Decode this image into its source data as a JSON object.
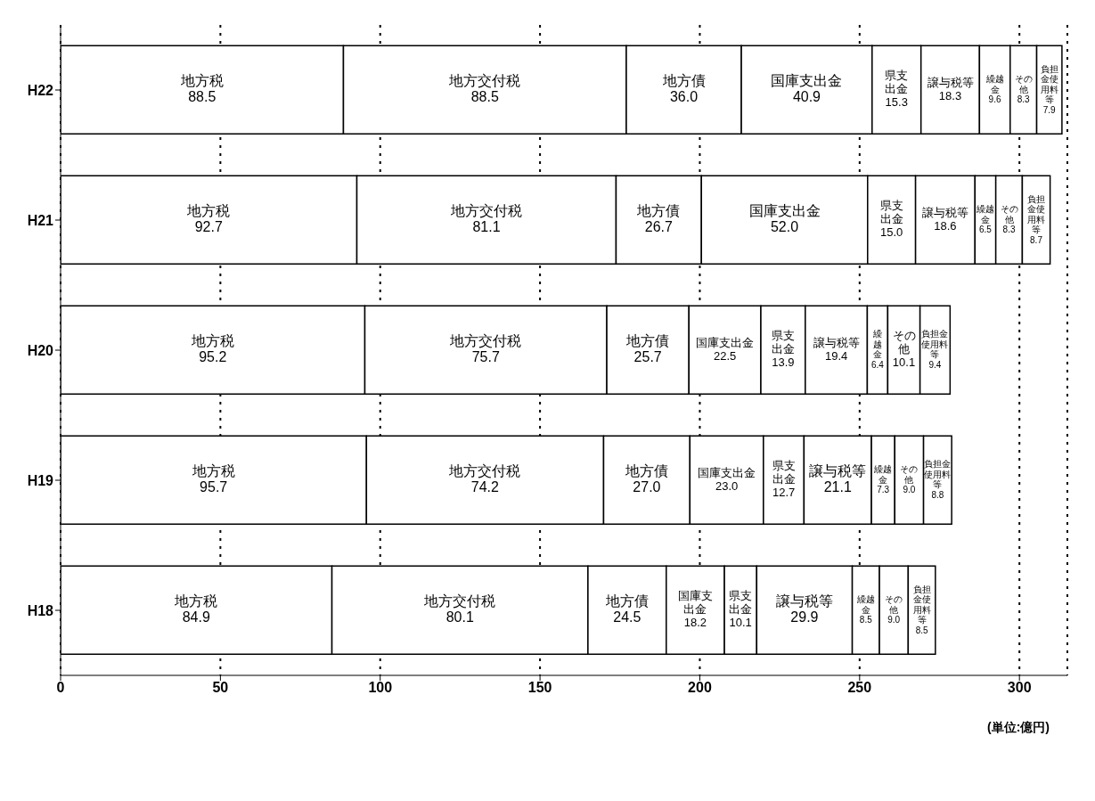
{
  "chart_data": {
    "type": "bar",
    "orientation": "horizontal",
    "stacked": true,
    "grid": "x",
    "line_style": "dotted",
    "legend": false,
    "categories": [
      "H22",
      "H21",
      "H20",
      "H19",
      "H18"
    ],
    "xlim": [
      0,
      315
    ],
    "xticks": [
      0,
      50,
      100,
      150,
      200,
      250,
      300
    ],
    "series": [
      {
        "name": "地方税",
        "color": "#ffffff",
        "values": [
          88.5,
          92.7,
          95.2,
          95.7,
          84.9
        ],
        "value_labels": [
          "88.5",
          "92.7",
          "95.2",
          "95.7",
          "84.9"
        ]
      },
      {
        "name": "地方交付税",
        "color": "#ffffff",
        "values": [
          88.5,
          81.1,
          75.7,
          74.2,
          80.1
        ],
        "value_labels": [
          "88.5",
          "81.1",
          "75.7",
          "74.2",
          "80.1"
        ]
      },
      {
        "name": "地方債",
        "color": "#ffffff",
        "values": [
          36.0,
          26.7,
          25.7,
          27.0,
          24.5
        ],
        "value_labels": [
          "36.0",
          "26.7",
          "25.7",
          "27.0",
          "24.5"
        ]
      },
      {
        "name": "国庫支出金",
        "color": "#ffffff",
        "values": [
          40.9,
          52.0,
          22.5,
          23.0,
          18.2
        ],
        "value_labels": [
          "40.9",
          "52.0",
          "22.5",
          "23.0",
          "18.2"
        ]
      },
      {
        "name": "県支出金",
        "color": "#ffffff",
        "values": [
          15.3,
          15.0,
          13.9,
          12.7,
          10.1
        ],
        "value_labels": [
          "15.3",
          "15.0",
          "13.9",
          "12.7",
          "10.1"
        ]
      },
      {
        "name": "譲与税等",
        "color": "#ffffff",
        "values": [
          18.3,
          18.6,
          19.4,
          21.1,
          29.9
        ],
        "value_labels": [
          "18.3",
          "18.6",
          "19.4",
          "21.1",
          "29.9"
        ]
      },
      {
        "name": "繰越金",
        "color": "#ffffff",
        "values": [
          9.6,
          6.5,
          6.4,
          7.3,
          8.5
        ],
        "value_labels": [
          "9.6",
          "6.5",
          "6.4",
          "7.3",
          "8.5"
        ]
      },
      {
        "name": "その他",
        "color": "#ffffff",
        "values": [
          8.3,
          8.3,
          10.1,
          9.0,
          9.0
        ],
        "value_labels": [
          "8.3",
          "8.3",
          "10.1",
          "9.0",
          "9.0"
        ]
      },
      {
        "name": "負担金使用料等",
        "color": "#ffffff",
        "values": [
          7.9,
          8.7,
          9.4,
          8.8,
          8.5
        ],
        "value_labels": [
          "7.9",
          "8.7",
          "9.4",
          "8.8",
          "8.5"
        ]
      }
    ],
    "annotations": [
      "(単位:億円)"
    ]
  }
}
